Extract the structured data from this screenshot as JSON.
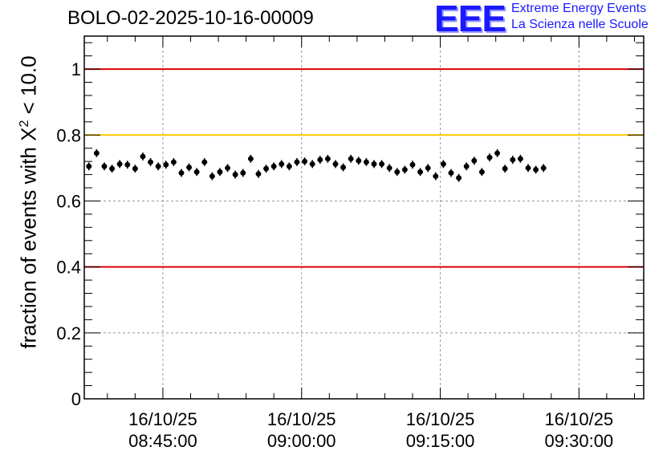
{
  "header": {
    "title": "BOLO-02-2025-10-16-00009"
  },
  "logo": {
    "mark": "EEE",
    "line1": "Extreme Energy Events",
    "line2": "La Scienza nelle Scuole",
    "color": "#1a1aff"
  },
  "chart_data": {
    "type": "scatter",
    "title": "BOLO-02-2025-10-16-00009",
    "ylabel_prefix": "fraction of events with X",
    "ylabel_sup": "2",
    "ylabel_suffix": " < 10.0",
    "ylim": [
      0,
      1.1
    ],
    "yticks": [
      0,
      0.2,
      0.4,
      0.6,
      0.8,
      1
    ],
    "ytick_labels": [
      "0",
      "0.2",
      "0.4",
      "0.6",
      "0.8",
      "1"
    ],
    "xlim": [
      "08:36:30",
      "09:37:00"
    ],
    "xticks": [
      "08:45:00",
      "09:00:00",
      "09:15:00",
      "09:30:00"
    ],
    "xtick_labels": [
      {
        "date": "16/10/25",
        "time": "08:45:00"
      },
      {
        "date": "16/10/25",
        "time": "09:00:00"
      },
      {
        "date": "16/10/25",
        "time": "09:15:00"
      },
      {
        "date": "16/10/25",
        "time": "09:30:00"
      }
    ],
    "grid": true,
    "reference_lines": [
      {
        "y": 1.0,
        "color": "#dd0000"
      },
      {
        "y": 0.8,
        "color": "#ffc800"
      },
      {
        "y": 0.4,
        "color": "#dd0000"
      }
    ],
    "marker_color": "#000000",
    "x_step_seconds": 50,
    "x_start": "08:37:00",
    "y_error": 0.012,
    "values": [
      0.705,
      0.745,
      0.705,
      0.698,
      0.712,
      0.71,
      0.698,
      0.735,
      0.718,
      0.705,
      0.71,
      0.718,
      0.685,
      0.702,
      0.688,
      0.718,
      0.675,
      0.688,
      0.7,
      0.68,
      0.685,
      0.728,
      0.682,
      0.698,
      0.705,
      0.712,
      0.705,
      0.718,
      0.72,
      0.712,
      0.725,
      0.728,
      0.712,
      0.702,
      0.728,
      0.722,
      0.718,
      0.712,
      0.712,
      0.7,
      0.688,
      0.695,
      0.71,
      0.688,
      0.7,
      0.675,
      0.712,
      0.685,
      0.67,
      0.705,
      0.722,
      0.688,
      0.732,
      0.745,
      0.698,
      0.725,
      0.728,
      0.7,
      0.695,
      0.7
    ]
  }
}
